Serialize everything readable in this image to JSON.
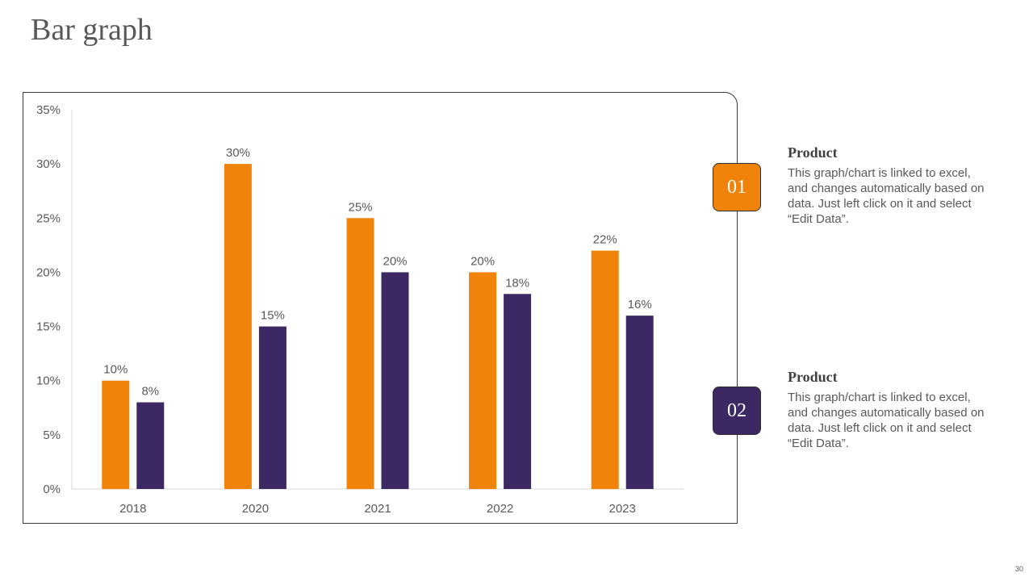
{
  "slide": {
    "title": "Bar graph",
    "page_number": "30"
  },
  "colors": {
    "series1": "#F0840A",
    "series2": "#3C2863",
    "axis_text": "#595959",
    "axis_line": "#D9D9D9"
  },
  "chart_data": {
    "type": "bar",
    "title": "",
    "xlabel": "",
    "ylabel": "",
    "categories": [
      "2018",
      "2020",
      "2021",
      "2022",
      "2023"
    ],
    "series": [
      {
        "name": "Product 01",
        "values": [
          10,
          30,
          25,
          20,
          22
        ],
        "labels": [
          "10%",
          "30%",
          "25%",
          "20%",
          "22%"
        ]
      },
      {
        "name": "Product 02",
        "values": [
          8,
          15,
          20,
          18,
          16
        ],
        "labels": [
          "8%",
          "15%",
          "20%",
          "18%",
          "16%"
        ]
      }
    ],
    "ylim": [
      0,
      35
    ],
    "yticks": [
      0,
      5,
      10,
      15,
      20,
      25,
      30,
      35
    ],
    "ytick_labels": [
      "0%",
      "5%",
      "10%",
      "15%",
      "20%",
      "25%",
      "30%",
      "35%"
    ],
    "grid": false,
    "legend": "none"
  },
  "items": [
    {
      "number": "01",
      "title": "Product",
      "text": "This graph/chart is linked to excel, and changes automatically based on data. Just left click on it and select “Edit Data”."
    },
    {
      "number": "02",
      "title": "Product",
      "text": "This graph/chart is linked to excel, and changes automatically based on data. Just left click on it and select “Edit Data”."
    }
  ]
}
